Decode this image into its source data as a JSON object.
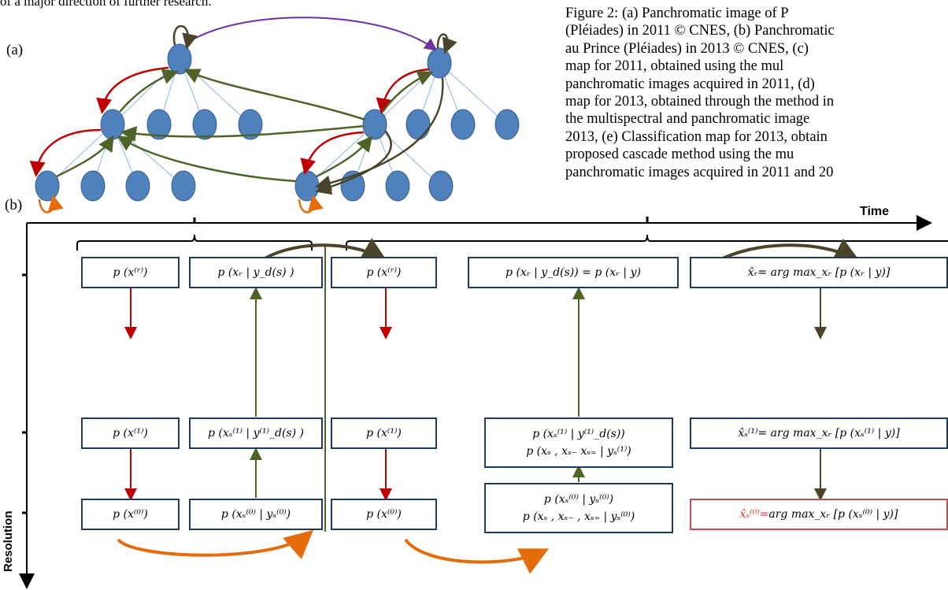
{
  "document": {
    "top_text": "of a major direction of further research.",
    "panel_a_label": "(a)",
    "panel_b_label": "(b)",
    "caption_lines": [
      "Figure 2: (a) Panchromatic image of P",
      "(Pléiades) in 2011 © CNES, (b) Panchromatic",
      "au Prince (Pléiades) in 2013 © CNES, (c)",
      "map for 2011, obtained using the mul",
      "panchromatic images acquired in 2011, (d)",
      "map for 2013, obtained through the method in",
      "the multispectral and panchromatic image",
      "2013, (e) Classification map for 2013, obtain",
      "proposed cascade method using the mu",
      "panchromatic images acquired in 2011 and 20"
    ]
  },
  "diagram_b": {
    "axis_time_label": "Time",
    "axis_resolution_label": "Resolution",
    "boxes": {
      "prior_root_2011": "p (x⁽ʳ⁾)",
      "prior_mid_2011": "p (x⁽¹⁾)",
      "prior_fine_2011": "p (x⁽⁰⁾)",
      "post_root_2011": "p (xᵣ | y_d(s) )",
      "post_mid_2011": "p (xₛ⁽¹⁾ | y⁽¹⁾_d(s) )",
      "post_fine_2011": "p (xₛ⁽⁰⁾ | yₛ⁽⁰⁾)",
      "prior_root_2013": "p (x⁽ʳ⁾)",
      "prior_mid_2013": "p (x⁽¹⁾)",
      "prior_fine_2013": "p (x⁽⁰⁾)",
      "post_root_2013": "p (xᵣ | y_d(s)) = p (xᵣ | y)",
      "post_mid_2013_line1": "p (xₛ⁽¹⁾ | y⁽¹⁾_d(s))",
      "post_mid_2013_line2": "p (xₛ , xₛ₋ xₛ₌ | yₛ⁽¹⁾)",
      "post_fine_2013_line1": "p  (xₛ⁽⁰⁾ | yₛ⁽⁰⁾)",
      "post_fine_2013_line2": "p (xₛ , xₛ₋ , xₛ₌ | yₛ⁽⁰⁾)",
      "map_root": "x̂ᵣ= arg max_xᵣ [p  (xᵣ | y)]",
      "map_mid": "x̂ₛ⁽¹⁾= arg max_xᵣ [p  (xₛ⁽¹⁾ | y)]",
      "map_fine_hat": "x̂ₛ⁽⁰⁾=",
      "map_fine_rest": " arg max_xᵣ [p  (xₛ⁽⁰⁾ | y)]"
    }
  },
  "colors": {
    "node_fill": "#4f81bd",
    "node_stroke": "#385d8a",
    "tree_edge": "#8eb4e3",
    "red_arrow": "#c00000",
    "green_arrow": "#4f6228",
    "purple_arrow": "#7030a0",
    "orange_arrow": "#e46c0a",
    "dark_olive": "#4a452a",
    "box_border": "#1f3a5f",
    "highlight_border": "#c0504d"
  }
}
